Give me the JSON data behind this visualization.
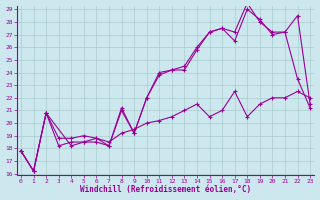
{
  "background_color": "#cce8ee",
  "line_color": "#990099",
  "grid_color": "#aacccc",
  "ylim": [
    16,
    29
  ],
  "xlim": [
    0,
    23
  ],
  "yticks": [
    16,
    17,
    18,
    19,
    20,
    21,
    22,
    23,
    24,
    25,
    26,
    27,
    28,
    29
  ],
  "xticks": [
    0,
    1,
    2,
    3,
    4,
    5,
    6,
    7,
    8,
    9,
    10,
    11,
    12,
    13,
    14,
    15,
    16,
    17,
    18,
    19,
    20,
    21,
    22,
    23
  ],
  "xlabel": "Windchill (Refroidissement éolien,°C)",
  "lines": [
    {
      "x": [
        0,
        1,
        2,
        3,
        4,
        5,
        6,
        7,
        8,
        9,
        10,
        11,
        12,
        13,
        14,
        15,
        16,
        17,
        18,
        19,
        20,
        21,
        22,
        23
      ],
      "y": [
        17.8,
        16.2,
        20.8,
        18.2,
        18.5,
        18.5,
        18.5,
        18.2,
        21.0,
        19.2,
        22.0,
        23.8,
        24.2,
        24.2,
        25.8,
        27.2,
        27.5,
        27.2,
        29.5,
        28.0,
        27.2,
        27.2,
        23.5,
        21.2
      ]
    },
    {
      "x": [
        0,
        1,
        2,
        4,
        5,
        6,
        7,
        8,
        9,
        10,
        11,
        12,
        13,
        14,
        15,
        16,
        17,
        18,
        19,
        20,
        21,
        22,
        23
      ],
      "y": [
        17.8,
        16.2,
        20.8,
        18.2,
        18.5,
        18.8,
        18.2,
        21.2,
        19.2,
        22.0,
        24.0,
        24.2,
        24.5,
        26.0,
        27.2,
        27.5,
        26.5,
        29.0,
        28.2,
        27.0,
        27.2,
        28.5,
        21.5
      ]
    },
    {
      "x": [
        0,
        1,
        2,
        3,
        4,
        5,
        6,
        7,
        8,
        9,
        10,
        11,
        12,
        13,
        14,
        15,
        16,
        17,
        18,
        19,
        20,
        21,
        22,
        23
      ],
      "y": [
        17.8,
        16.2,
        20.8,
        18.8,
        18.8,
        19.0,
        18.8,
        18.5,
        19.2,
        19.5,
        20.0,
        20.2,
        20.5,
        21.0,
        21.5,
        20.5,
        21.0,
        22.5,
        20.5,
        21.5,
        22.0,
        22.0,
        22.5,
        22.0
      ]
    }
  ]
}
